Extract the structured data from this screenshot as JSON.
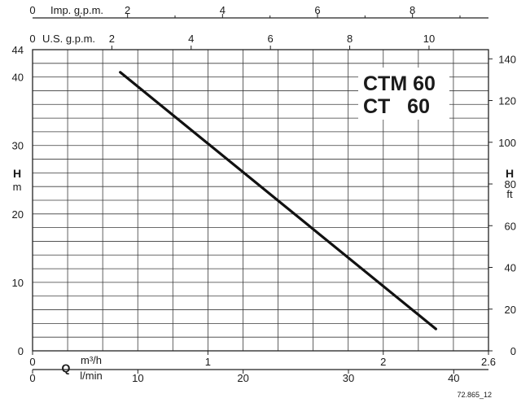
{
  "chart_data": {
    "type": "line",
    "title_lines": [
      "CTM 60",
      "CT   60"
    ],
    "series": [
      {
        "values": [
          [
            0.5,
            40.7
          ],
          [
            2.3,
            3.2
          ]
        ]
      }
    ],
    "x_axes": {
      "imp_gpm": {
        "label": "Imp. g.p.m.",
        "zero": "0",
        "ticks": [
          2,
          4,
          6,
          8
        ],
        "range": [
          0,
          9.6
        ]
      },
      "us_gpm": {
        "label": "U.S. g.p.m.",
        "zero": "0",
        "ticks": [
          2,
          4,
          6,
          8,
          10
        ],
        "range": [
          0,
          11.5
        ]
      },
      "m3h": {
        "symbol": "Q",
        "unit": "m³/h",
        "ticks": [
          0,
          1,
          2,
          2.6
        ],
        "range": [
          0,
          2.6
        ]
      },
      "lmin": {
        "unit": "l/min",
        "ticks": [
          0,
          10,
          20,
          30,
          40
        ],
        "range": [
          0,
          43.3
        ]
      }
    },
    "y_axes": {
      "left": {
        "symbol": "H",
        "unit": "m",
        "range": [
          0,
          44
        ],
        "ticks": [
          0,
          10,
          20,
          30,
          40,
          44
        ],
        "grid_step": 2
      },
      "right": {
        "symbol": "H",
        "unit": "ft",
        "range": [
          0,
          144.4
        ],
        "ticks": [
          0,
          20,
          40,
          60,
          80,
          100,
          120,
          140
        ]
      }
    },
    "grid": true,
    "x_grid_m3h_step": 0.2
  },
  "footer": {
    "drawing_code": "72.865_12"
  }
}
